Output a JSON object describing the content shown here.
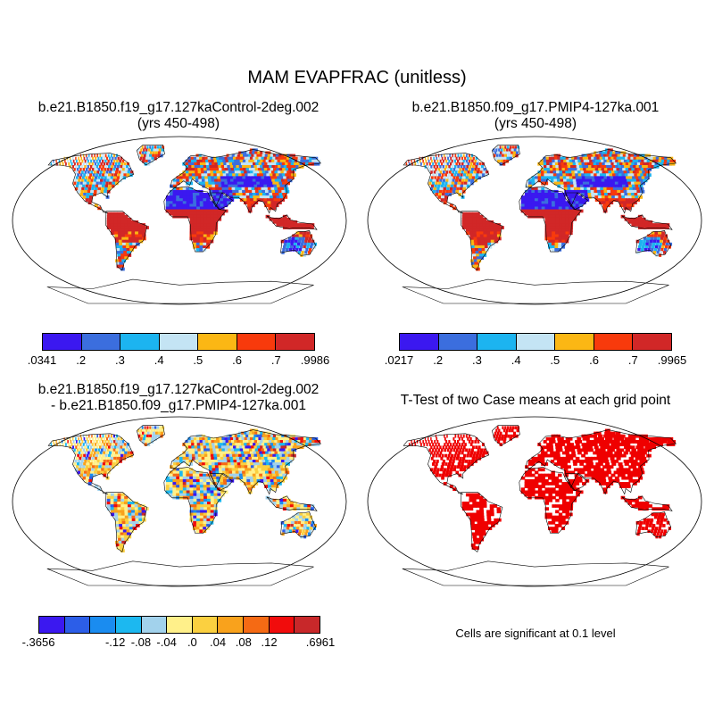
{
  "title": "MAM EVAPFRAC (unitless)",
  "panels": {
    "control": {
      "title_line1": "b.e21.B1850.f19_g17.127kaControl-2deg.002",
      "title_line2": "(yrs 450-498)",
      "colorbar": {
        "colors": [
          "#3b18f0",
          "#3b6ede",
          "#1cb4f0",
          "#c4e4f4",
          "#fbb714",
          "#f83a0c",
          "#d12727"
        ],
        "labels": [
          ".0341",
          ".2",
          ".3",
          ".4",
          ".5",
          ".6",
          ".7",
          ".9986"
        ]
      }
    },
    "pmip4": {
      "title_line1": "b.e21.B1850.f09_g17.PMIP4-127ka.001",
      "title_line2": "(yrs 450-498)",
      "colorbar": {
        "colors": [
          "#3b18f0",
          "#3b6ede",
          "#1cb4f0",
          "#c4e4f4",
          "#fbb714",
          "#f83a0c",
          "#d12727"
        ],
        "labels": [
          ".0217",
          ".2",
          ".3",
          ".4",
          ".5",
          ".6",
          ".7",
          ".9965"
        ]
      }
    },
    "difference": {
      "title_line1": "b.e21.B1850.f19_g17.127kaControl-2deg.002",
      "title_line2": "- b.e21.B1850.f09_g17.PMIP4-127ka.001",
      "colorbar": {
        "colors": [
          "#3b18f0",
          "#2c5ee8",
          "#1a8cf0",
          "#1cb8f0",
          "#a2d2ec",
          "#fff08a",
          "#fbd040",
          "#f9a21c",
          "#f56a14",
          "#f10c0c",
          "#c8282a"
        ],
        "labels": [
          "-.3656",
          "-.12",
          "-.08",
          "-.04",
          ".0",
          ".04",
          ".08",
          ".12",
          ".6961"
        ]
      }
    },
    "ttest": {
      "title_line1": "T-Test of two Case means at each grid point",
      "note": "Cells are significant at 0.1 level",
      "color": "#ef0000"
    }
  }
}
